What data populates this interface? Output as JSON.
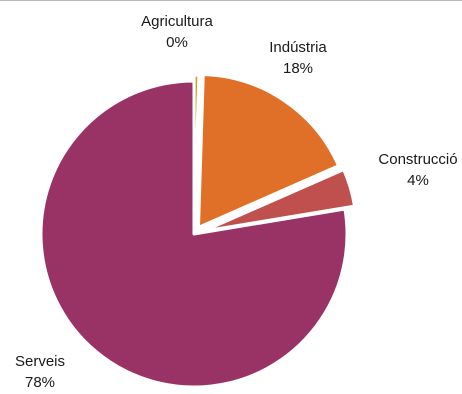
{
  "chart_data": {
    "type": "pie",
    "title": "",
    "slices": [
      {
        "label": "Agricultura",
        "percent_label": "0%",
        "value": 0.5,
        "color": "#c9a227"
      },
      {
        "label": "Indústria",
        "percent_label": "18%",
        "value": 18,
        "color": "#e07027"
      },
      {
        "label": "Construcció",
        "percent_label": "4%",
        "value": 4,
        "color": "#c0504d"
      },
      {
        "label": "Serveis",
        "percent_label": "78%",
        "value": 78,
        "color": "#993366"
      }
    ],
    "start_angle": "12 o'clock, clockwise",
    "exploded": [
      "Agricultura",
      "Indústria",
      "Construcció"
    ],
    "legend": "none (labels beside slices)"
  }
}
